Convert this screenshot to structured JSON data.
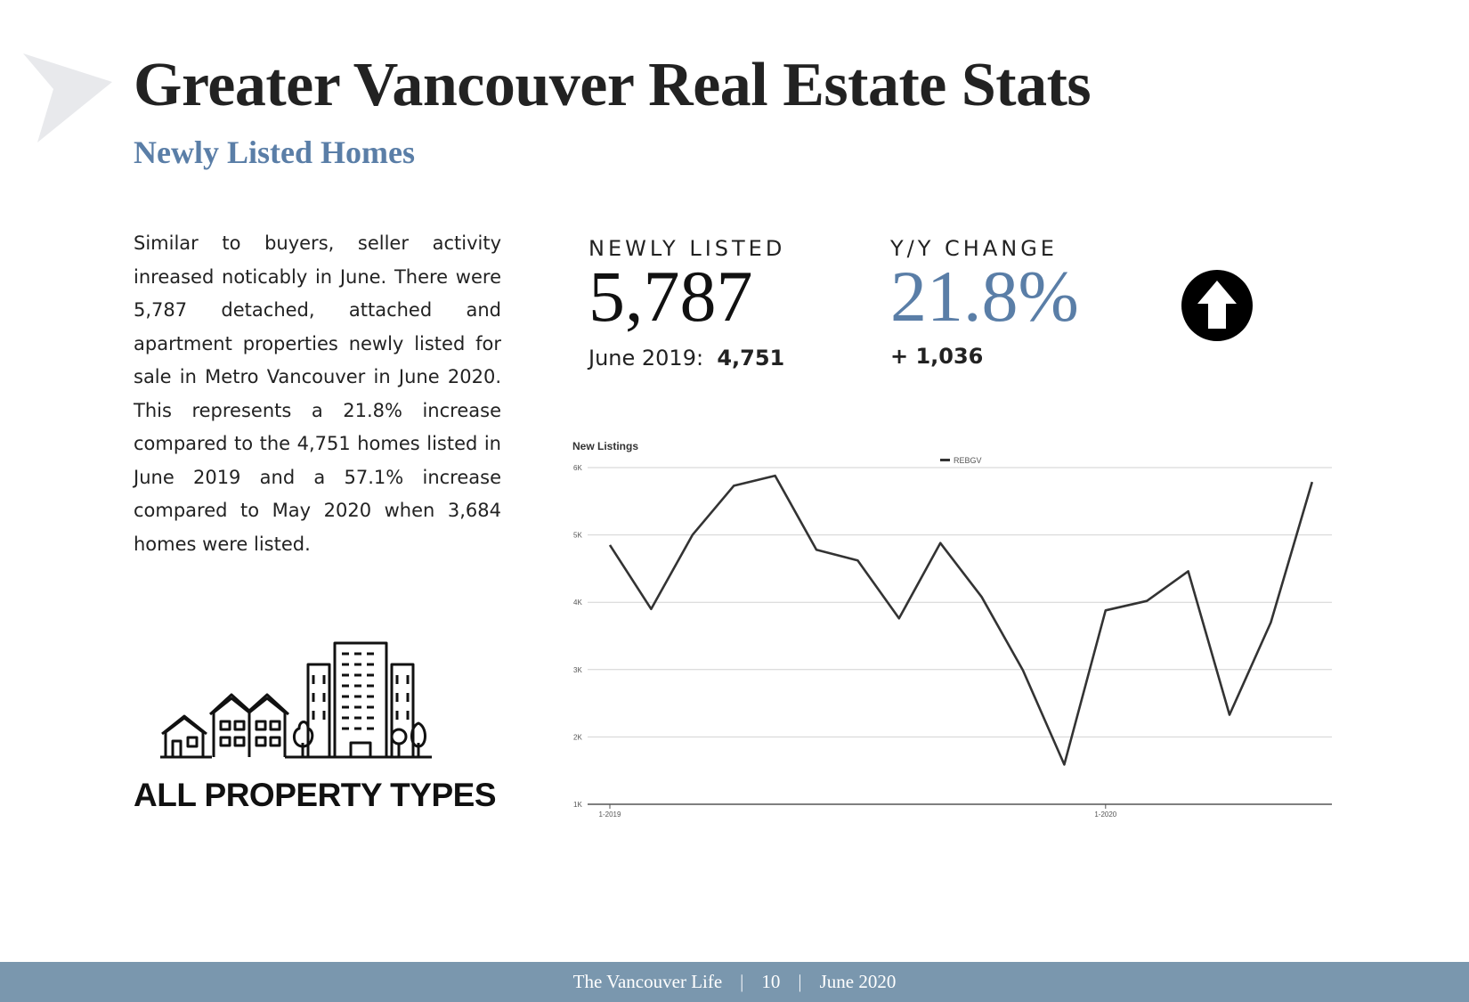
{
  "header": {
    "title": "Greater Vancouver Real Estate Stats",
    "subtitle": "Newly Listed Homes"
  },
  "body_text": "Similar to buyers, seller activity inreased noticably in June.  There were 5,787 detached, attached and apartment properties newly listed for sale in Metro Vancouver in June 2020. This represents a 21.8% increase compared to the 4,751 homes listed in June 2019 and a 57.1% increase compared to May 2020 when 3,684 homes were listed.",
  "stats": {
    "newly_listed_label": "NEWLY LISTED",
    "newly_listed_value": "5,787",
    "prior_label": "June 2019:",
    "prior_value": "4,751",
    "change_label": "Y/Y CHANGE",
    "change_value": "21.8%",
    "change_delta": "+ 1,036",
    "change_icon": "arrow-up-circle-icon"
  },
  "property_types_label": "ALL PROPERTY TYPES",
  "colors": {
    "accent": "#5a7ea7",
    "footer": "#7a97ae",
    "text": "#222222"
  },
  "chart_data": {
    "type": "line",
    "title": "New Listings",
    "series": [
      {
        "name": "REBGV",
        "values": [
          4850,
          3900,
          5000,
          5730,
          5880,
          4780,
          4620,
          3760,
          4880,
          4080,
          2990,
          1590,
          3880,
          4020,
          4460,
          2330,
          3700,
          5787
        ]
      }
    ],
    "x_tick_labels": [
      "1-2019",
      "1-2020"
    ],
    "x_tick_positions": [
      0,
      12
    ],
    "y_ticks": [
      "1K",
      "2K",
      "3K",
      "4K",
      "5K",
      "6K"
    ],
    "ylim": [
      1000,
      6000
    ],
    "grid": true,
    "legend": "top-center"
  },
  "footer": {
    "publication": "The Vancouver Life",
    "page": "10",
    "date": "June 2020",
    "separator": "|"
  }
}
